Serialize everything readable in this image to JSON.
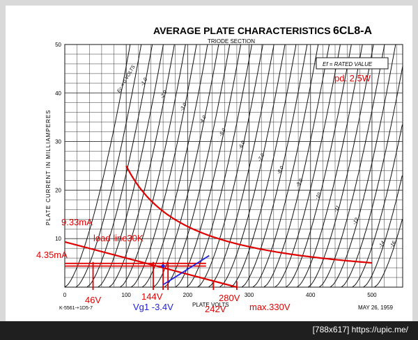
{
  "chart_data": {
    "type": "line",
    "title": "AVERAGE PLATE CHARACTERISTICS",
    "tube": "6CL8-A",
    "subtitle": "TRIODE SECTION",
    "legend_box": "Ef = RATED VALUE",
    "xlabel": "PLATE VOLTS",
    "ylabel": "PLATE CURRENT IN MILLIAMPERES",
    "xlim": [
      0,
      550
    ],
    "ylim": [
      0,
      50
    ],
    "x_ticks": [
      0,
      100,
      200,
      300,
      400,
      500
    ],
    "y_ticks": [
      0,
      10,
      20,
      30,
      40,
      50
    ],
    "x_tick_labels": [
      "0",
      "100",
      "200",
      "300",
      "400",
      "500"
    ],
    "y_tick_labels": [
      "10",
      "20",
      "30",
      "40",
      "50"
    ],
    "grid": true,
    "doc_id": "K-5561-+1D5-7",
    "date": "MAY 26, 1959",
    "grid_curves": {
      "pitch_volts_per_ma": 0.86,
      "bias_labels": [
        {
          "vg": 0,
          "label": "Ec = 0 VOLTS"
        },
        {
          "vg": -1,
          "label": "-1.0"
        },
        {
          "vg": -2,
          "label": "-2.0"
        },
        {
          "vg": -3,
          "label": "-3.0"
        },
        {
          "vg": -4,
          "label": "-4.0"
        },
        {
          "vg": -5,
          "label": "-5.0"
        },
        {
          "vg": -6,
          "label": "-6.0"
        },
        {
          "vg": -7,
          "label": "-7.0"
        },
        {
          "vg": -8,
          "label": "-8.0"
        },
        {
          "vg": -9,
          "label": "-9.0"
        },
        {
          "vg": -10,
          "label": "-10"
        },
        {
          "vg": -11,
          "label": "-11"
        },
        {
          "vg": -12,
          "label": "-12"
        },
        {
          "vg": -14,
          "label": "-14"
        },
        {
          "vg": -16,
          "label": "-16"
        }
      ],
      "series": [
        {
          "vg": 0,
          "x0": 0
        },
        {
          "vg": -0.5,
          "x0": 18
        },
        {
          "vg": -1,
          "x0": 36
        },
        {
          "vg": -1.5,
          "x0": 54
        },
        {
          "vg": -2,
          "x0": 72
        },
        {
          "vg": -2.5,
          "x0": 90
        },
        {
          "vg": -3,
          "x0": 108
        },
        {
          "vg": -3.5,
          "x0": 126
        },
        {
          "vg": -4,
          "x0": 144
        },
        {
          "vg": -4.5,
          "x0": 162
        },
        {
          "vg": -5,
          "x0": 180
        },
        {
          "vg": -5.5,
          "x0": 198
        },
        {
          "vg": -6,
          "x0": 216
        },
        {
          "vg": -6.5,
          "x0": 234
        },
        {
          "vg": -7,
          "x0": 252
        },
        {
          "vg": -7.5,
          "x0": 270
        },
        {
          "vg": -8,
          "x0": 288
        },
        {
          "vg": -8.5,
          "x0": 306
        },
        {
          "vg": -9,
          "x0": 324
        },
        {
          "vg": -9.5,
          "x0": 342
        },
        {
          "vg": -10,
          "x0": 360
        },
        {
          "vg": -10.5,
          "x0": 378
        },
        {
          "vg": -11,
          "x0": 396
        },
        {
          "vg": -11.5,
          "x0": 414
        },
        {
          "vg": -12,
          "x0": 432
        },
        {
          "vg": -12.5,
          "x0": 450
        },
        {
          "vg": -13,
          "x0": 468
        },
        {
          "vg": -14,
          "x0": 486
        },
        {
          "vg": -16,
          "x0": 504
        }
      ]
    },
    "dissipation_curve": {
      "label": "pd. 2.5W",
      "power_w": 2.5,
      "x_range": [
        100,
        500
      ]
    },
    "load_line": {
      "label": "load line30K",
      "x": [
        0,
        280
      ],
      "y": [
        9.33,
        0
      ],
      "color": "#e00000"
    },
    "bias_line": {
      "label": "Vg1 -3.4V",
      "x": [
        160,
        235
      ],
      "y": [
        0.5,
        6.5
      ],
      "color": "#2020e0"
    },
    "operating_point": {
      "x": 144,
      "y": 4.35,
      "crossing_lines": [
        {
          "x": [
            0,
            230
          ],
          "y": [
            4.35,
            4.35
          ]
        },
        {
          "x": [
            0,
            230
          ],
          "y": [
            4.9,
            4.9
          ]
        }
      ]
    },
    "annotations": {
      "i_max": "9.33mA",
      "i_q": "4.35mA",
      "v_min": "46V",
      "v_q": "144V",
      "v_240": "242V",
      "v_280": "280V",
      "v_max": "max.330V"
    },
    "vertical_markers": [
      46,
      144,
      160,
      168,
      242,
      280
    ]
  },
  "footer": {
    "text": "[788x617] https://upic.me/"
  }
}
